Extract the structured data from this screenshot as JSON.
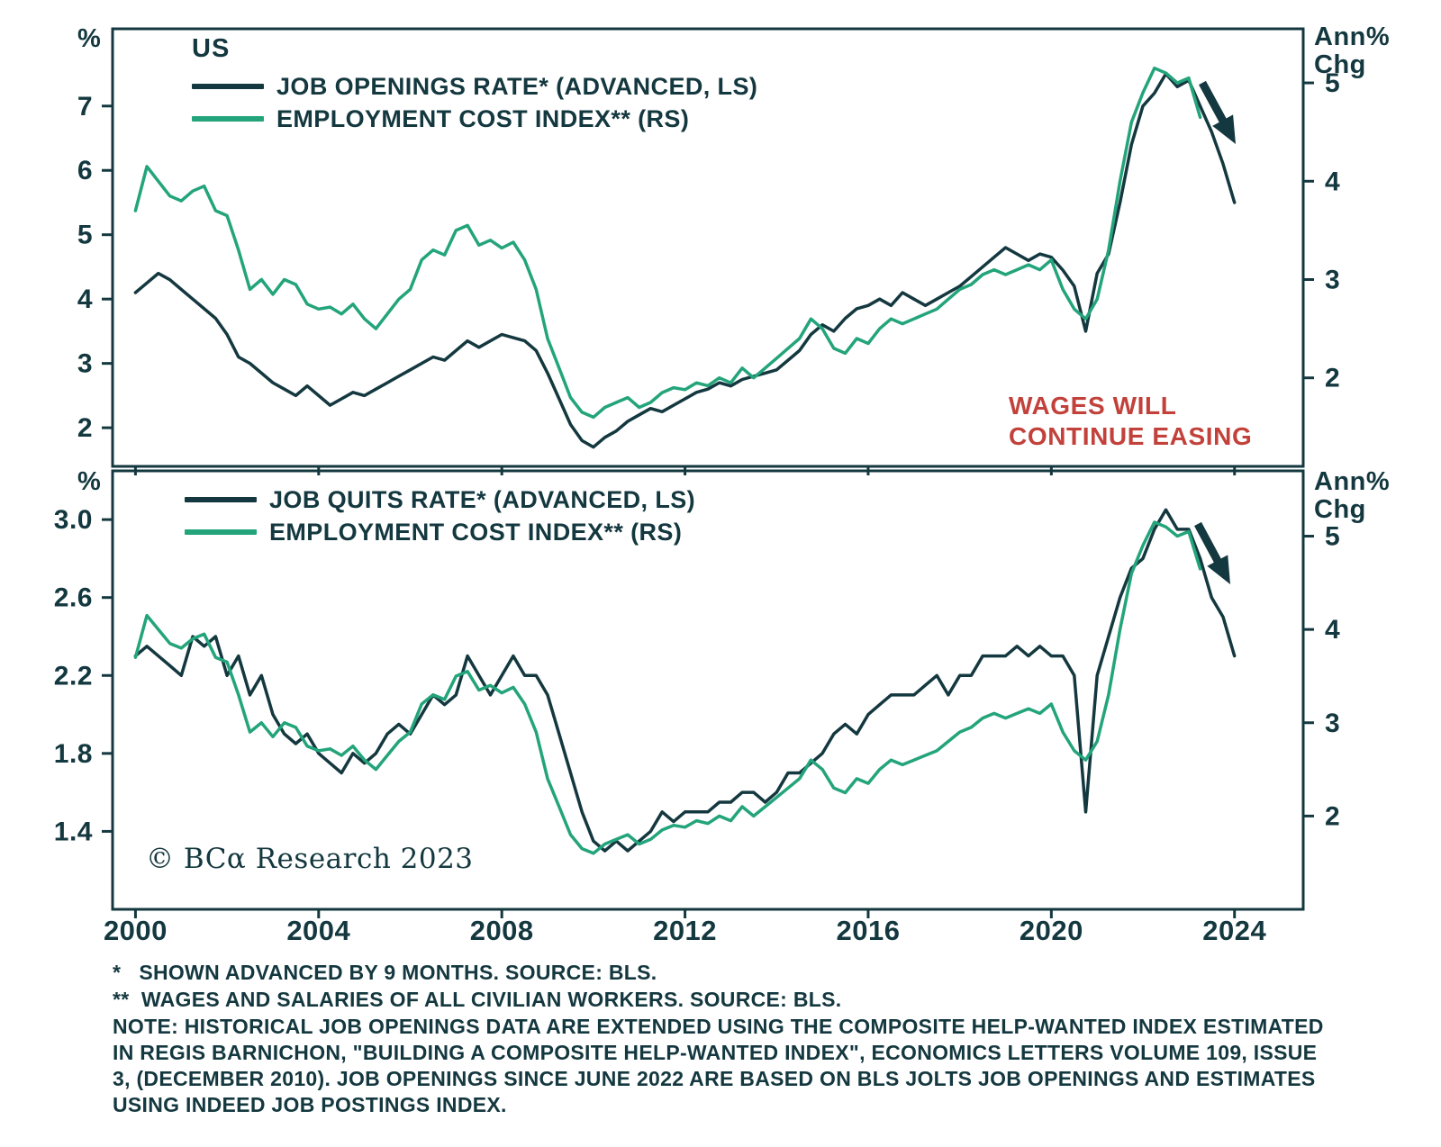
{
  "colors": {
    "navy": "#14383f",
    "green": "#23a47a",
    "red": "#c2413b"
  },
  "annotation": {
    "line1": "WAGES WILL",
    "line2": "CONTINUE EASING"
  },
  "copyright": "© BCα Research 2023",
  "footnotes": [
    "*   SHOWN ADVANCED BY 9 MONTHS. SOURCE: BLS.",
    "**  WAGES AND SALARIES OF ALL CIVILIAN WORKERS. SOURCE: BLS.",
    "NOTE: HISTORICAL JOB OPENINGS DATA ARE EXTENDED USING THE COMPOSITE HELP-WANTED INDEX ESTIMATED IN REGIS BARNICHON, \"BUILDING A COMPOSITE HELP-WANTED INDEX\", ECONOMICS LETTERS VOLUME 109, ISSUE 3, (DECEMBER 2010). JOB OPENINGS SINCE JUNE 2022 ARE BASED ON BLS JOLTS JOB OPENINGS AND ESTIMATES USING INDEED JOB POSTINGS INDEX."
  ],
  "chart_data": [
    {
      "type": "line",
      "title": "US",
      "xlim": [
        1999.5,
        2025.5
      ],
      "x_ticks": [
        2000,
        2004,
        2008,
        2012,
        2016,
        2020,
        2024
      ],
      "left_axis": {
        "unit": "%",
        "ticks": [
          "2",
          "3",
          "4",
          "5",
          "6",
          "7"
        ],
        "tick_values": [
          2,
          3,
          4,
          5,
          6,
          7
        ],
        "ylim": [
          1.4,
          8.2
        ]
      },
      "right_axis": {
        "unit_line1": "Ann%",
        "unit_line2": "Chg",
        "ticks": [
          "2",
          "3",
          "4",
          "5"
        ],
        "tick_values": [
          2,
          3,
          4,
          5
        ],
        "ylim": [
          1.1,
          5.55
        ]
      },
      "series": [
        {
          "name": "JOB OPENINGS RATE* (ADVANCED, LS)",
          "axis": "left",
          "color": "navy",
          "x_start": 2000.0,
          "x_step": 0.25,
          "values": [
            4.1,
            4.25,
            4.4,
            4.3,
            4.15,
            4.0,
            3.85,
            3.7,
            3.45,
            3.1,
            3.0,
            2.85,
            2.7,
            2.6,
            2.5,
            2.65,
            2.5,
            2.35,
            2.45,
            2.55,
            2.5,
            2.6,
            2.7,
            2.8,
            2.9,
            3.0,
            3.1,
            3.05,
            3.2,
            3.35,
            3.25,
            3.35,
            3.45,
            3.4,
            3.35,
            3.2,
            2.85,
            2.45,
            2.05,
            1.8,
            1.7,
            1.85,
            1.95,
            2.1,
            2.2,
            2.3,
            2.25,
            2.35,
            2.45,
            2.55,
            2.6,
            2.7,
            2.65,
            2.75,
            2.8,
            2.85,
            2.9,
            3.05,
            3.2,
            3.45,
            3.6,
            3.5,
            3.7,
            3.85,
            3.9,
            4.0,
            3.9,
            4.1,
            4.0,
            3.9,
            4.0,
            4.1,
            4.2,
            4.35,
            4.5,
            4.65,
            4.8,
            4.7,
            4.6,
            4.7,
            4.65,
            4.45,
            4.2,
            3.5,
            4.4,
            4.7,
            5.5,
            6.4,
            7.0,
            7.2,
            7.5,
            7.3,
            7.4,
            7.0,
            6.6,
            6.1,
            5.5
          ]
        },
        {
          "name": "EMPLOYMENT COST INDEX** (RS)",
          "axis": "right",
          "color": "green",
          "x_start": 2000.0,
          "x_step": 0.25,
          "values": [
            3.7,
            4.15,
            4.0,
            3.85,
            3.8,
            3.9,
            3.95,
            3.7,
            3.65,
            3.3,
            2.9,
            3.0,
            2.85,
            3.0,
            2.95,
            2.75,
            2.7,
            2.72,
            2.65,
            2.75,
            2.6,
            2.5,
            2.65,
            2.8,
            2.9,
            3.2,
            3.3,
            3.25,
            3.5,
            3.55,
            3.35,
            3.4,
            3.32,
            3.38,
            3.2,
            2.9,
            2.4,
            2.1,
            1.8,
            1.65,
            1.6,
            1.7,
            1.75,
            1.8,
            1.7,
            1.75,
            1.85,
            1.9,
            1.88,
            1.95,
            1.92,
            2.0,
            1.95,
            2.1,
            2.0,
            2.1,
            2.2,
            2.3,
            2.4,
            2.6,
            2.5,
            2.3,
            2.25,
            2.4,
            2.35,
            2.5,
            2.6,
            2.55,
            2.6,
            2.65,
            2.7,
            2.8,
            2.9,
            2.95,
            3.05,
            3.1,
            3.05,
            3.1,
            3.15,
            3.1,
            3.2,
            2.9,
            2.7,
            2.6,
            2.8,
            3.3,
            4.0,
            4.6,
            4.9,
            5.15,
            5.1,
            5.0,
            5.05,
            4.65
          ]
        }
      ]
    },
    {
      "type": "line",
      "title": "",
      "xlim": [
        1999.5,
        2025.5
      ],
      "x_ticks": [
        2000,
        2004,
        2008,
        2012,
        2016,
        2020,
        2024
      ],
      "left_axis": {
        "unit": "%",
        "ticks": [
          "1.4",
          "1.8",
          "2.2",
          "2.6",
          "3.0"
        ],
        "tick_values": [
          1.4,
          1.8,
          2.2,
          2.6,
          3.0
        ],
        "ylim": [
          1.0,
          3.25
        ]
      },
      "right_axis": {
        "unit_line1": "Ann%",
        "unit_line2": "Chg",
        "ticks": [
          "2",
          "3",
          "4",
          "5"
        ],
        "tick_values": [
          2,
          3,
          4,
          5
        ],
        "ylim": [
          1.0,
          5.7
        ]
      },
      "series": [
        {
          "name": "JOB QUITS RATE* (ADVANCED, LS)",
          "axis": "left",
          "color": "navy",
          "x_start": 2000.0,
          "x_step": 0.25,
          "values": [
            2.3,
            2.35,
            2.3,
            2.25,
            2.2,
            2.4,
            2.35,
            2.4,
            2.2,
            2.3,
            2.1,
            2.2,
            2.0,
            1.9,
            1.85,
            1.9,
            1.8,
            1.75,
            1.7,
            1.8,
            1.75,
            1.8,
            1.9,
            1.95,
            1.9,
            2.0,
            2.1,
            2.05,
            2.1,
            2.3,
            2.2,
            2.1,
            2.2,
            2.3,
            2.2,
            2.2,
            2.1,
            1.9,
            1.7,
            1.5,
            1.35,
            1.3,
            1.35,
            1.3,
            1.35,
            1.4,
            1.5,
            1.45,
            1.5,
            1.5,
            1.5,
            1.55,
            1.55,
            1.6,
            1.6,
            1.55,
            1.6,
            1.7,
            1.7,
            1.75,
            1.8,
            1.9,
            1.95,
            1.9,
            2.0,
            2.05,
            2.1,
            2.1,
            2.1,
            2.15,
            2.2,
            2.1,
            2.2,
            2.2,
            2.3,
            2.3,
            2.3,
            2.35,
            2.3,
            2.35,
            2.3,
            2.3,
            2.2,
            1.5,
            2.2,
            2.4,
            2.6,
            2.75,
            2.8,
            2.95,
            3.05,
            2.95,
            2.95,
            2.8,
            2.6,
            2.5,
            2.3
          ]
        },
        {
          "name": "EMPLOYMENT COST INDEX** (RS)",
          "axis": "right",
          "color": "green",
          "x_start": 2000.0,
          "x_step": 0.25,
          "values": [
            3.7,
            4.15,
            4.0,
            3.85,
            3.8,
            3.9,
            3.95,
            3.7,
            3.65,
            3.3,
            2.9,
            3.0,
            2.85,
            3.0,
            2.95,
            2.75,
            2.7,
            2.72,
            2.65,
            2.75,
            2.6,
            2.5,
            2.65,
            2.8,
            2.9,
            3.2,
            3.3,
            3.25,
            3.5,
            3.55,
            3.35,
            3.4,
            3.32,
            3.38,
            3.2,
            2.9,
            2.4,
            2.1,
            1.8,
            1.65,
            1.6,
            1.7,
            1.75,
            1.8,
            1.7,
            1.75,
            1.85,
            1.9,
            1.88,
            1.95,
            1.92,
            2.0,
            1.95,
            2.1,
            2.0,
            2.1,
            2.2,
            2.3,
            2.4,
            2.6,
            2.5,
            2.3,
            2.25,
            2.4,
            2.35,
            2.5,
            2.6,
            2.55,
            2.6,
            2.65,
            2.7,
            2.8,
            2.9,
            2.95,
            3.05,
            3.1,
            3.05,
            3.1,
            3.15,
            3.1,
            3.2,
            2.9,
            2.7,
            2.6,
            2.8,
            3.3,
            4.0,
            4.6,
            4.9,
            5.15,
            5.1,
            5.0,
            5.05,
            4.65
          ]
        }
      ]
    }
  ]
}
